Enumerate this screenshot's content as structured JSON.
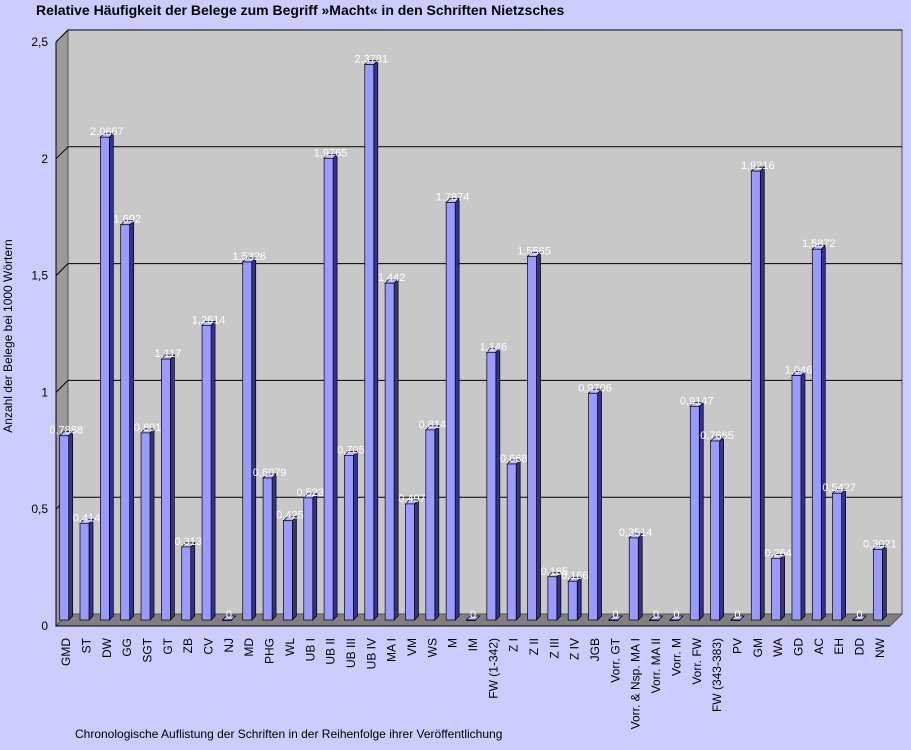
{
  "chart_data": {
    "type": "bar",
    "title": "Relative Häufigkeit der Belege zum Begriff »Macht« in den Schriften Nietzsches",
    "xlabel": "Chronologische Auflistung der Schriften in der Reihenfolge ihrer Veröffentlichung",
    "ylabel": "Anzahl der Belege bei 1000 Wörtern",
    "ylim": [
      0,
      2.5
    ],
    "yticks": [
      "0",
      "0,5",
      "1",
      "1,5",
      "2",
      "2,5"
    ],
    "grid": true,
    "categories": [
      "GMD",
      "ST",
      "DW",
      "GG",
      "SGT",
      "GT",
      "ZB",
      "CV",
      "NJ",
      "MD",
      "PHG",
      "WL",
      "UB I",
      "UB II",
      "UB III",
      "UB IV",
      "MA I",
      "VM",
      "WS",
      "M",
      "IM",
      "FW (1-342)",
      "Z I",
      "Z II",
      "Z III",
      "Z IV",
      "JGB",
      "Vorr. GT",
      "Vorr. & Nsp. MA I",
      "Vorr. MA II",
      "Vorr. M",
      "Vorr. FW",
      "FW (343-383)",
      "PV",
      "GM",
      "WA",
      "GD",
      "AC",
      "EH",
      "DD",
      "NW"
    ],
    "values": [
      0.7888,
      0.414,
      2.0667,
      1.692,
      0.801,
      1.117,
      0.313,
      1.2614,
      0,
      1.5326,
      0.6079,
      0.425,
      0.523,
      1.9765,
      0.705,
      2.3781,
      1.442,
      0.497,
      0.814,
      1.7874,
      0,
      1.146,
      0.668,
      1.5565,
      0.185,
      0.166,
      0.9706,
      0,
      0.3514,
      0,
      0,
      0.9147,
      0.7665,
      0,
      1.9216,
      0.264,
      1.046,
      1.5872,
      0.5427,
      0,
      0.3021
    ],
    "data_labels": [
      "0,7888",
      "0,414",
      "2,0667",
      "1,692",
      "0,801",
      "1,117",
      "0,313",
      "1,2614",
      "0",
      "1,5326",
      "0,6079",
      "0,425",
      "0,523",
      "1,9765",
      "0,705",
      "2,3781",
      "1,442",
      "0,497",
      "0,814",
      "1,7874",
      "0",
      "1,146",
      "0,668",
      "1,5565",
      "0,185",
      "0,166",
      "0,9706",
      "0",
      "0,3514",
      "0",
      "0",
      "0,9147",
      "0,7665",
      "0",
      "1,9216",
      "0,264",
      "1,046",
      "1,5872",
      "0,5427",
      "0",
      "0,3021"
    ]
  }
}
